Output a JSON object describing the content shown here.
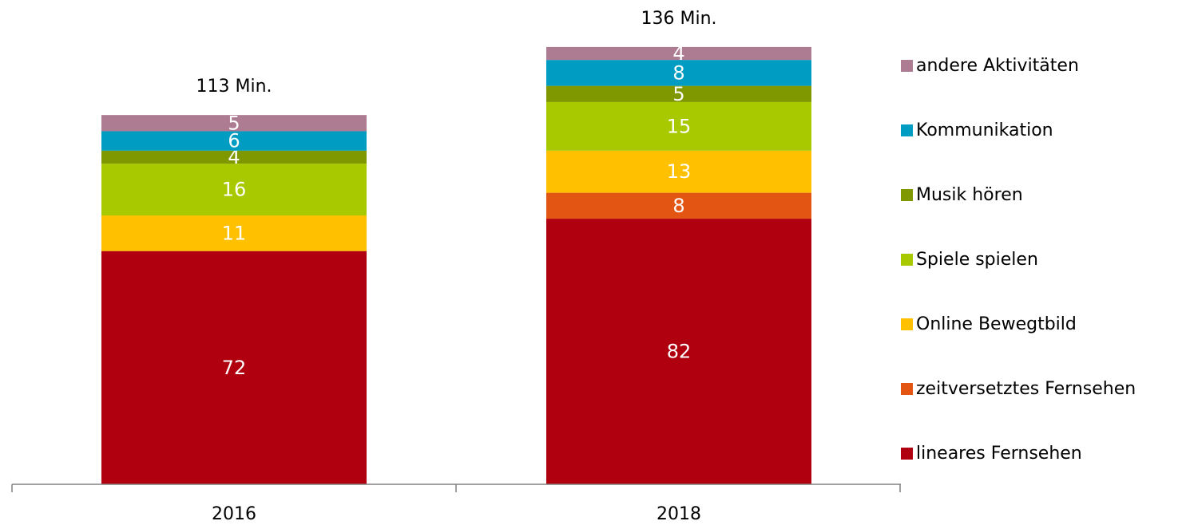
{
  "chart_data": {
    "type": "bar",
    "stacked": true,
    "categories": [
      "2016",
      "2018"
    ],
    "totals": [
      "113 Min.",
      "136 Min."
    ],
    "ylim": [
      0,
      140
    ],
    "grid": false,
    "legend_position": "right",
    "series": [
      {
        "name": "lineares Fernsehen",
        "color": "#B0000F",
        "values": [
          72,
          82
        ]
      },
      {
        "name": "zeitversetztes Fernsehen",
        "color": "#E35513",
        "values": [
          0,
          8
        ]
      },
      {
        "name": "Online Bewegtbild",
        "color": "#FFC000",
        "values": [
          11,
          13
        ]
      },
      {
        "name": "Spiele spielen",
        "color": "#A8C800",
        "values": [
          16,
          15
        ]
      },
      {
        "name": "Musik hören",
        "color": "#7F9800",
        "values": [
          4,
          5
        ]
      },
      {
        "name": "Kommunikation",
        "color": "#009CC2",
        "values": [
          6,
          8
        ]
      },
      {
        "name": "andere Aktivitäten",
        "color": "#AE7C92",
        "values": [
          5,
          4
        ]
      }
    ]
  }
}
